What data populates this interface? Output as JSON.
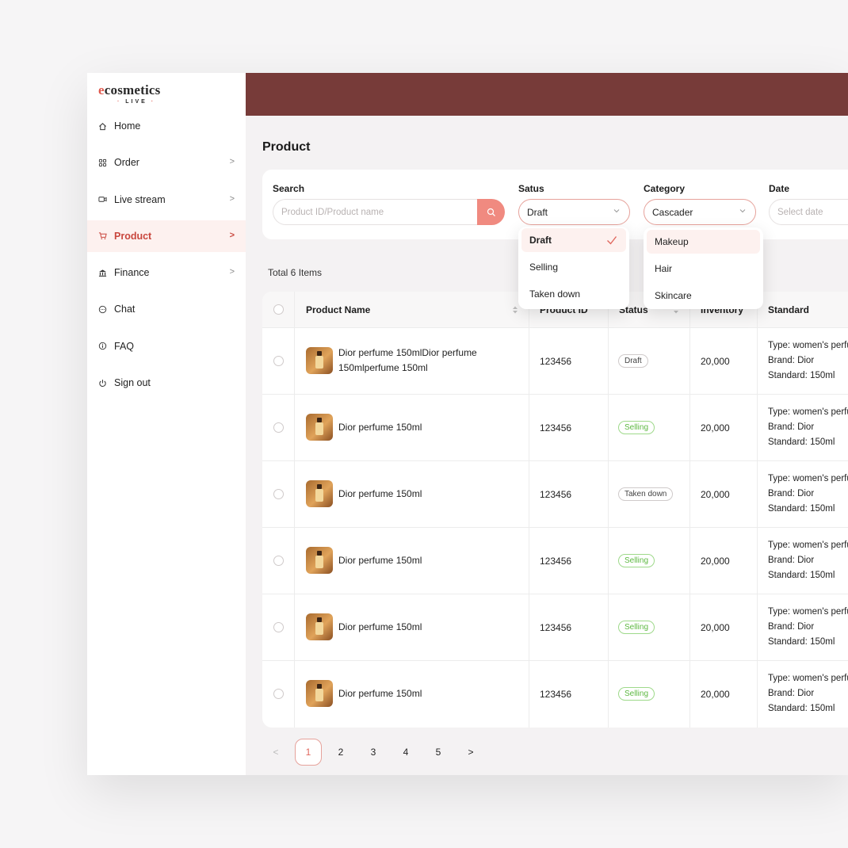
{
  "brand": {
    "logo_text": "cosmetics",
    "logo_sub": "LIVE"
  },
  "sidebar": {
    "items": [
      {
        "label": "Home",
        "icon": "home-icon",
        "chevron": false,
        "active": false
      },
      {
        "label": "Order",
        "icon": "grid-icon",
        "chevron": true,
        "active": false
      },
      {
        "label": "Live stream",
        "icon": "video-icon",
        "chevron": true,
        "active": false
      },
      {
        "label": "Product",
        "icon": "cart-icon",
        "chevron": true,
        "active": true
      },
      {
        "label": "Finance",
        "icon": "bank-icon",
        "chevron": true,
        "active": false
      },
      {
        "label": "Chat",
        "icon": "chat-icon",
        "chevron": false,
        "active": false
      },
      {
        "label": "FAQ",
        "icon": "info-icon",
        "chevron": false,
        "active": false
      },
      {
        "label": "Sign out",
        "icon": "power-icon",
        "chevron": false,
        "active": false
      }
    ]
  },
  "page": {
    "title": "Product"
  },
  "filters": {
    "search_label": "Search",
    "search_placeholder": "Product ID/Product name",
    "status_label": "Satus",
    "status_value": "Draft",
    "category_label": "Category",
    "category_value": "Cascader",
    "date_label": "Date",
    "date_placeholder": "Select date"
  },
  "status_dropdown": {
    "options": [
      "Draft",
      "Selling",
      "Taken down"
    ],
    "selected": "Draft"
  },
  "category_dropdown": {
    "options": [
      "Makeup",
      "Hair",
      "Skincare"
    ],
    "highlighted": "Makeup"
  },
  "total_text": "Total 6 Items",
  "table": {
    "columns": [
      "Product Name",
      "Product ID",
      "Status",
      "Inventory",
      "Standard"
    ],
    "rows": [
      {
        "name_line1": "Dior perfume 150mlDior perfume",
        "name_line2": "150mlperfume 150ml",
        "id": "123456",
        "status": "Draft",
        "inventory": "20,000",
        "std1": "Type: women's perfume",
        "std2": "Brand: Dior",
        "std3": "Standard: 150ml"
      },
      {
        "name_line1": "Dior perfume 150ml",
        "name_line2": "",
        "id": "123456",
        "status": "Selling",
        "inventory": "20,000",
        "std1": "Type: women's perfume",
        "std2": "Brand: Dior",
        "std3": "Standard: 150ml"
      },
      {
        "name_line1": "Dior perfume 150ml",
        "name_line2": "",
        "id": "123456",
        "status": "Taken down",
        "inventory": "20,000",
        "std1": "Type: women's perfume",
        "std2": "Brand: Dior",
        "std3": "Standard: 150ml"
      },
      {
        "name_line1": "Dior perfume 150ml",
        "name_line2": "",
        "id": "123456",
        "status": "Selling",
        "inventory": "20,000",
        "std1": "Type: women's perfume",
        "std2": "Brand: Dior",
        "std3": "Standard: 150ml"
      },
      {
        "name_line1": "Dior perfume 150ml",
        "name_line2": "",
        "id": "123456",
        "status": "Selling",
        "inventory": "20,000",
        "std1": "Type: women's perfume",
        "std2": "Brand: Dior",
        "std3": "Standard: 150ml"
      },
      {
        "name_line1": "Dior perfume 150ml",
        "name_line2": "",
        "id": "123456",
        "status": "Selling",
        "inventory": "20,000",
        "std1": "Type: women's perfume",
        "std2": "Brand: Dior",
        "std3": "Standard: 150ml"
      }
    ]
  },
  "pagination": {
    "prev": "<",
    "pages": [
      "1",
      "2",
      "3",
      "4",
      "5"
    ],
    "current": "1",
    "next": ">"
  },
  "colors": {
    "topbar": "#773b39",
    "accent": "#e05a4f",
    "search_button": "#f08a80",
    "selling": "#5cb840"
  }
}
